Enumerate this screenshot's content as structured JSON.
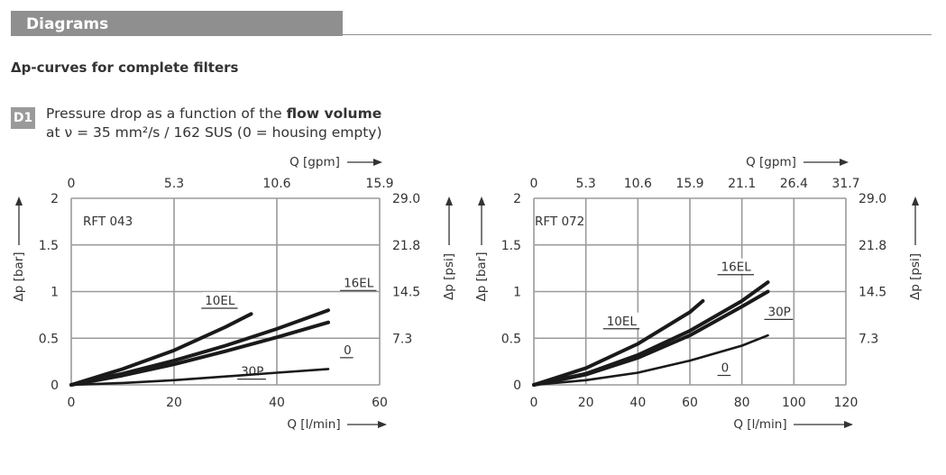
{
  "header": {
    "title": "Diagrams"
  },
  "section": {
    "subtitle": "Δp-curves for complete filters"
  },
  "diagram": {
    "badge": "D1",
    "desc_line1_prefix": "Pressure drop as a function of the ",
    "desc_line1_bold": "flow volume",
    "desc_line2": "at ν = 35 mm²/s / 162 SUS  (0 = housing empty)"
  },
  "chart_data": [
    {
      "type": "line",
      "title": "RFT 043",
      "xlabel": "Q [l/min]",
      "ylabel": "Δp [bar]",
      "x2label": "Q [gpm]",
      "y2label": "Δp [psi]",
      "xlim": [
        0,
        60
      ],
      "ylim": [
        0,
        2
      ],
      "xticks": [
        "0",
        "20",
        "40",
        "60"
      ],
      "yticks": [
        "0",
        "0.5",
        "1",
        "1.5",
        "2"
      ],
      "x2ticks": [
        "0",
        "5.3",
        "10.6",
        "15.9"
      ],
      "y2ticks": [
        "7.3",
        "14.5",
        "21.8",
        "29.0"
      ],
      "grid": true,
      "series": [
        {
          "name": "10EL",
          "label_pos": [
            26,
            0.86
          ],
          "x": [
            0,
            10,
            20,
            30,
            35
          ],
          "y": [
            0,
            0.17,
            0.37,
            0.62,
            0.76
          ]
        },
        {
          "name": "16EL",
          "label_pos": [
            53,
            1.05
          ],
          "x": [
            0,
            10,
            20,
            30,
            40,
            50
          ],
          "y": [
            0,
            0.12,
            0.26,
            0.42,
            0.6,
            0.8
          ]
        },
        {
          "name": "30P",
          "label_pos": [
            33,
            0.1
          ],
          "x": [
            0,
            10,
            20,
            30,
            40,
            50
          ],
          "y": [
            0,
            0.1,
            0.22,
            0.36,
            0.51,
            0.67
          ]
        },
        {
          "name": "0",
          "label_pos": [
            53,
            0.33
          ],
          "x": [
            0,
            10,
            20,
            30,
            40,
            50
          ],
          "y": [
            0,
            0.02,
            0.05,
            0.09,
            0.13,
            0.17
          ]
        }
      ]
    },
    {
      "type": "line",
      "title": "RFT 072",
      "xlabel": "Q [l/min]",
      "ylabel": "Δp [bar]",
      "x2label": "Q [gpm]",
      "y2label": "Δp [psi]",
      "xlim": [
        0,
        120
      ],
      "ylim": [
        0,
        2
      ],
      "xticks": [
        "0",
        "20",
        "40",
        "60",
        "80",
        "100",
        "120"
      ],
      "yticks": [
        "0",
        "0.5",
        "1",
        "1.5",
        "2"
      ],
      "x2ticks": [
        "0",
        "5.3",
        "10.6",
        "15.9",
        "21.1",
        "26.4",
        "31.7"
      ],
      "y2ticks": [
        "7.3",
        "14.5",
        "21.8",
        "29.0"
      ],
      "grid": true,
      "series": [
        {
          "name": "10EL",
          "label_pos": [
            28,
            0.64
          ],
          "x": [
            0,
            20,
            40,
            60,
            65
          ],
          "y": [
            0,
            0.18,
            0.44,
            0.78,
            0.9
          ]
        },
        {
          "name": "16EL",
          "label_pos": [
            72,
            1.22
          ],
          "x": [
            0,
            20,
            40,
            60,
            80,
            90
          ],
          "y": [
            0,
            0.12,
            0.32,
            0.58,
            0.9,
            1.1
          ]
        },
        {
          "name": "30P",
          "label_pos": [
            90,
            0.74
          ],
          "x": [
            0,
            20,
            40,
            60,
            80,
            90
          ],
          "y": [
            0,
            0.11,
            0.29,
            0.53,
            0.84,
            1.0
          ]
        },
        {
          "name": "0",
          "label_pos": [
            72,
            0.14
          ],
          "x": [
            0,
            20,
            40,
            60,
            80,
            90
          ],
          "y": [
            0,
            0.05,
            0.13,
            0.26,
            0.42,
            0.53
          ]
        }
      ]
    }
  ]
}
